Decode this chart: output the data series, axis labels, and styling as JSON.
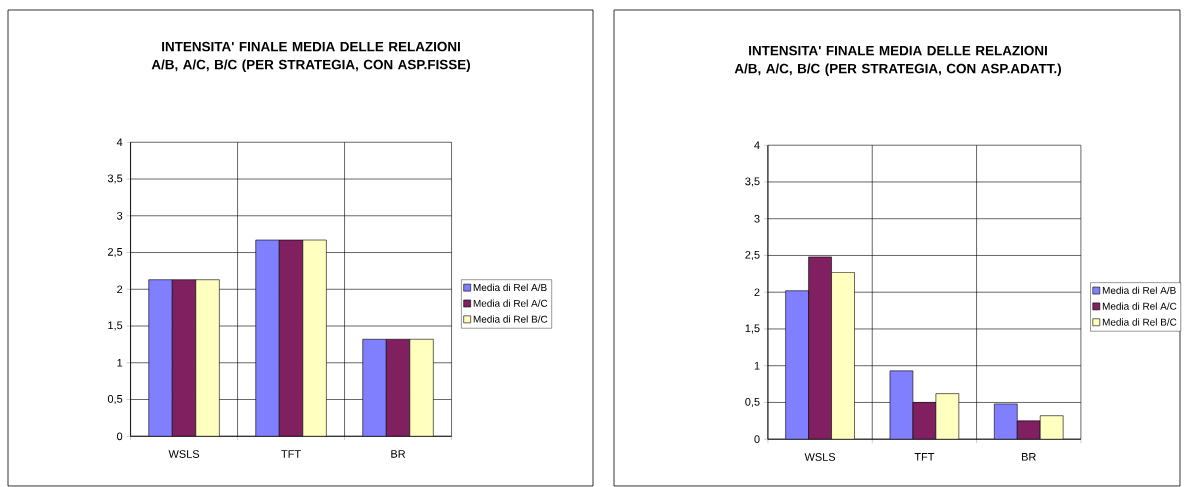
{
  "chart_data": [
    {
      "type": "bar",
      "title": "INTENSITA' FINALE MEDIA DELLE RELAZIONI A/B, A/C, B/C (PER STRATEGIA, CON ASP.FISSE)",
      "categories": [
        "WSLS",
        "TFT",
        "BR"
      ],
      "series": [
        {
          "name": "Media di Rel A/B",
          "color": "#8080ff",
          "values": [
            2.13,
            2.67,
            1.32
          ]
        },
        {
          "name": "Media di Rel A/C",
          "color": "#802060",
          "values": [
            2.13,
            2.67,
            1.32
          ]
        },
        {
          "name": "Media di Rel B/C",
          "color": "#ffffc0",
          "values": [
            2.13,
            2.67,
            1.32
          ]
        }
      ],
      "ylim": [
        0,
        4
      ],
      "yticks": [
        0,
        {
          "value": 0.5,
          "label": "0,5"
        },
        1,
        {
          "value": 1.5,
          "label": "1,5"
        },
        2,
        {
          "value": 2.5,
          "label": "2,5"
        },
        3,
        {
          "value": 3.5,
          "label": "3,5"
        },
        4
      ],
      "grid": true,
      "legend": "right"
    },
    {
      "type": "bar",
      "title": "INTENSITA' FINALE MEDIA DELLE RELAZIONI A/B, A/C, B/C (PER STRATEGIA, CON ASP.ADATT.)",
      "categories": [
        "WSLS",
        "TFT",
        "BR"
      ],
      "series": [
        {
          "name": "Media di Rel A/B",
          "color": "#8080ff",
          "values": [
            2.02,
            0.93,
            0.48
          ]
        },
        {
          "name": "Media di Rel A/C",
          "color": "#802060",
          "values": [
            2.48,
            0.5,
            0.25
          ]
        },
        {
          "name": "Media di Rel B/C",
          "color": "#ffffc0",
          "values": [
            2.27,
            0.62,
            0.32
          ]
        }
      ],
      "ylim": [
        0,
        4
      ],
      "yticks": [
        0,
        {
          "value": 0.5,
          "label": "0,5"
        },
        1,
        {
          "value": 1.5,
          "label": "1,5"
        },
        2,
        {
          "value": 2.5,
          "label": "2,5"
        },
        3,
        {
          "value": 3.5,
          "label": "3,5"
        },
        4
      ],
      "grid": true,
      "legend": "right"
    }
  ]
}
